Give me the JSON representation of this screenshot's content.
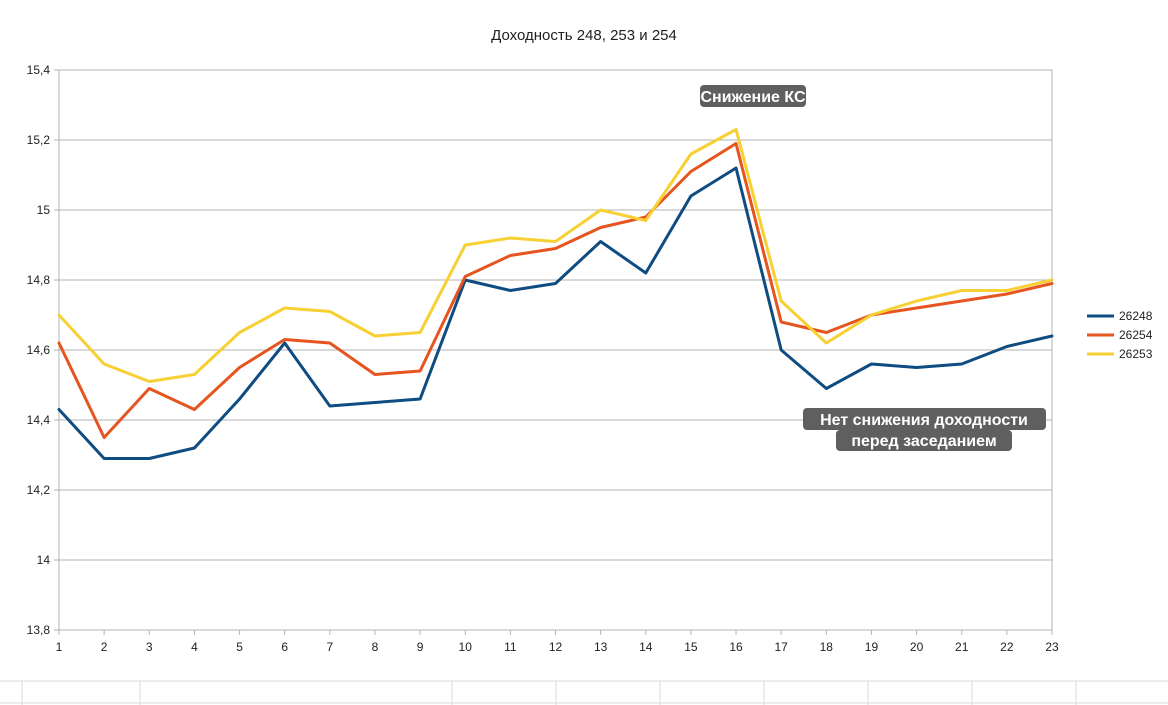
{
  "chart_data": {
    "type": "line",
    "title": "Доходность 248, 253 и 254",
    "x": [
      1,
      2,
      3,
      4,
      5,
      6,
      7,
      8,
      9,
      10,
      11,
      12,
      13,
      14,
      15,
      16,
      17,
      18,
      19,
      20,
      21,
      22,
      23
    ],
    "x_ticks": [
      "1",
      "2",
      "3",
      "4",
      "5",
      "6",
      "7",
      "8",
      "9",
      "10",
      "11",
      "12",
      "13",
      "14",
      "15",
      "16",
      "17",
      "18",
      "19",
      "20",
      "21",
      "22",
      "23"
    ],
    "y_ticks": [
      "13,8",
      "14",
      "14,2",
      "14,4",
      "14,6",
      "14,8",
      "15",
      "15,2",
      "15,4"
    ],
    "ylim": [
      13.8,
      15.4
    ],
    "grid": "horizontal",
    "legend": "right",
    "series": [
      {
        "name": "26248",
        "color": "#0f4c81",
        "values": [
          14.43,
          14.29,
          14.29,
          14.32,
          14.46,
          14.62,
          14.44,
          14.45,
          14.46,
          14.8,
          14.77,
          14.79,
          14.91,
          14.82,
          15.04,
          15.12,
          14.6,
          14.49,
          14.56,
          14.55,
          14.56,
          14.61,
          14.64
        ]
      },
      {
        "name": "26254",
        "color": "#e6541f",
        "values": [
          14.62,
          14.35,
          14.49,
          14.43,
          14.55,
          14.63,
          14.62,
          14.53,
          14.54,
          14.81,
          14.87,
          14.89,
          14.95,
          14.98,
          15.11,
          15.19,
          14.68,
          14.65,
          14.7,
          14.72,
          14.74,
          14.76,
          14.79
        ]
      },
      {
        "name": "26253",
        "color": "#f7d034",
        "values": [
          14.7,
          14.56,
          14.51,
          14.53,
          14.65,
          14.72,
          14.71,
          14.64,
          14.65,
          14.9,
          14.92,
          14.91,
          15.0,
          14.97,
          15.16,
          15.23,
          14.74,
          14.62,
          14.7,
          14.74,
          14.77,
          14.77,
          14.8
        ]
      }
    ],
    "annotations": [
      {
        "id": "rate-cut",
        "lines": [
          "Снижение КС"
        ]
      },
      {
        "id": "no-decline",
        "lines": [
          "Нет снижения доходности",
          "перед заседанием"
        ]
      }
    ]
  }
}
